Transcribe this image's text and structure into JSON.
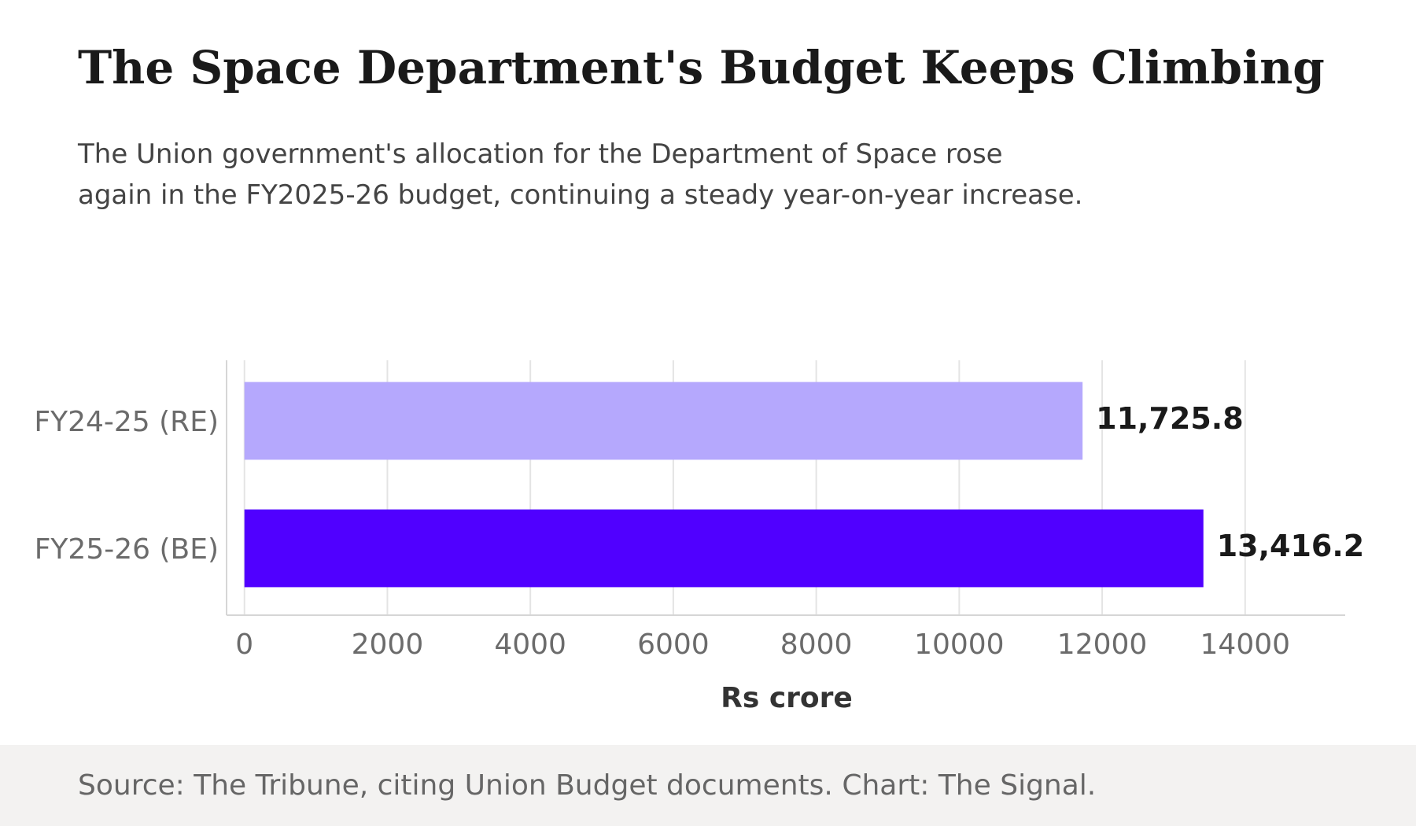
{
  "header": {
    "title": "The Space Department's Budget Keeps Climbing",
    "subtitle": "The Union government's allocation for the Department of Space rose again in the FY2025-26 budget, continuing a steady year-on-year increase."
  },
  "footer": {
    "source": "Source: The Tribune, citing Union Budget documents. Chart: The Signal."
  },
  "chart_data": {
    "type": "bar",
    "orientation": "horizontal",
    "categories": [
      "FY24-25 (RE)",
      "FY25-26 (BE)"
    ],
    "values": [
      11725.8,
      13416.2
    ],
    "value_labels": [
      "11,725.8",
      "13,416.2"
    ],
    "colors": [
      "#b5a8fd",
      "#5000ff"
    ],
    "xlabel": "Rs crore",
    "ylabel": "",
    "xlim": [
      -250,
      15400
    ],
    "xticks": [
      0,
      2000,
      4000,
      6000,
      8000,
      10000,
      12000,
      14000
    ],
    "xtick_labels": [
      "0",
      "2000",
      "4000",
      "6000",
      "8000",
      "10000",
      "12000",
      "14000"
    ],
    "grid": "vertical",
    "legend": "none"
  }
}
